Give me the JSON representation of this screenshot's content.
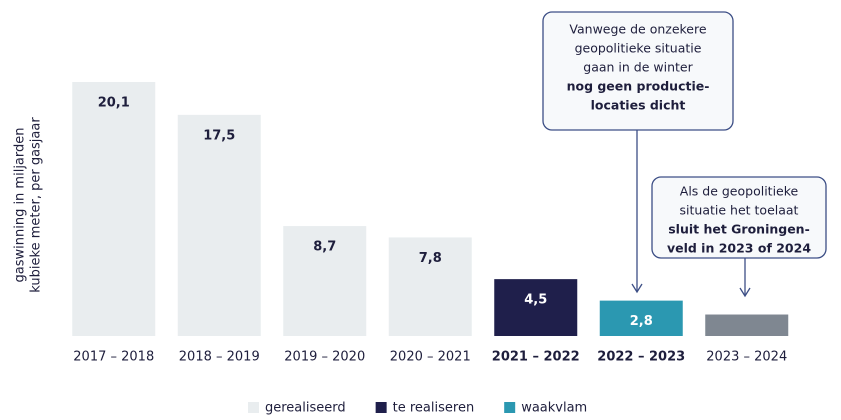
{
  "chart_data": {
    "type": "bar",
    "y_label": [
      "gaswinning in miljarden",
      "kubieke meter, per gasjaar"
    ],
    "categories": [
      "2017 – 2018",
      "2018 – 2019",
      "2019 – 2020",
      "2020 – 2021",
      "2021 – 2022",
      "2022 – 2023",
      "2023 – 2024"
    ],
    "values": [
      20.1,
      17.5,
      8.7,
      7.8,
      4.5,
      2.8,
      1.7
    ],
    "value_labels": [
      "20,1",
      "17,5",
      "8,7",
      "7,8",
      "4,5",
      "2,8",
      null
    ],
    "colors": [
      "#e9edef",
      "#e9edef",
      "#e9edef",
      "#e9edef",
      "#1f1f4b",
      "#2b98b1",
      "#7f8791"
    ],
    "ylim": [
      0,
      22
    ],
    "legend": [
      {
        "name": "gerealiseerd",
        "color": "#e9edef"
      },
      {
        "name": "te realiseren",
        "color": "#1f1f4b"
      },
      {
        "name": "waakvlam",
        "color": "#2b98b1"
      }
    ],
    "annotations": [
      {
        "text": [
          "Vanwege de onzekere",
          "geopolitieke situatie",
          "gaan in de winter"
        ],
        "bold": [
          "nog geen productie-",
          "locaties dicht"
        ]
      },
      {
        "text": [
          "Als de geopolitieke",
          "situatie het toelaat"
        ],
        "bold": [
          "sluit het Groningen-",
          "veld in 2023 of 2024"
        ]
      }
    ]
  }
}
